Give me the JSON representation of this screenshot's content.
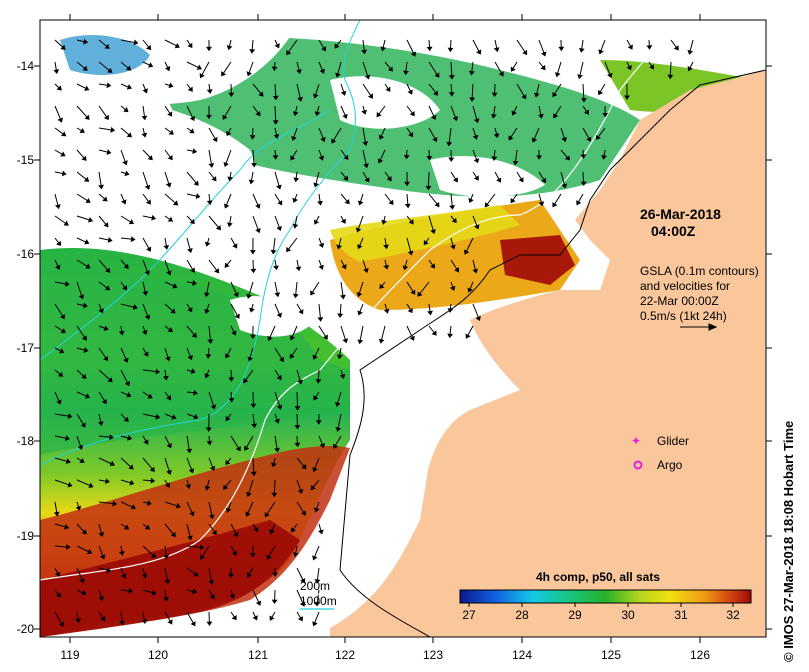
{
  "map": {
    "x_ticks": [
      "119",
      "120",
      "121",
      "122",
      "123",
      "124",
      "125",
      "126"
    ],
    "y_ticks": [
      "-14",
      "-15",
      "-16",
      "-17",
      "-18",
      "-19",
      "-20"
    ],
    "date": "26-Mar-2018",
    "time": "04:00Z",
    "gsla_note": [
      "GSLA (0.1m contours)",
      "and velocities for",
      "22-Mar 00:00Z",
      "0.5m/s (1kt 24h)"
    ],
    "legend": {
      "glider": "Glider",
      "argo": "Argo",
      "contour_200": "200m",
      "contour_1000": "1000m"
    },
    "colorbar": {
      "title": "4h comp, p50, all sats",
      "ticks": [
        "27",
        "28",
        "29",
        "30",
        "31",
        "32"
      ]
    },
    "credit": "© IMOS 27-Mar-2018 18:08 Hobart Time",
    "colors": {
      "land": "#f9c79b",
      "glider": "#e61ee6",
      "argo": "#e61ee6",
      "contour_200": "#ffffff",
      "contour_1000": "#22d3e0"
    }
  }
}
